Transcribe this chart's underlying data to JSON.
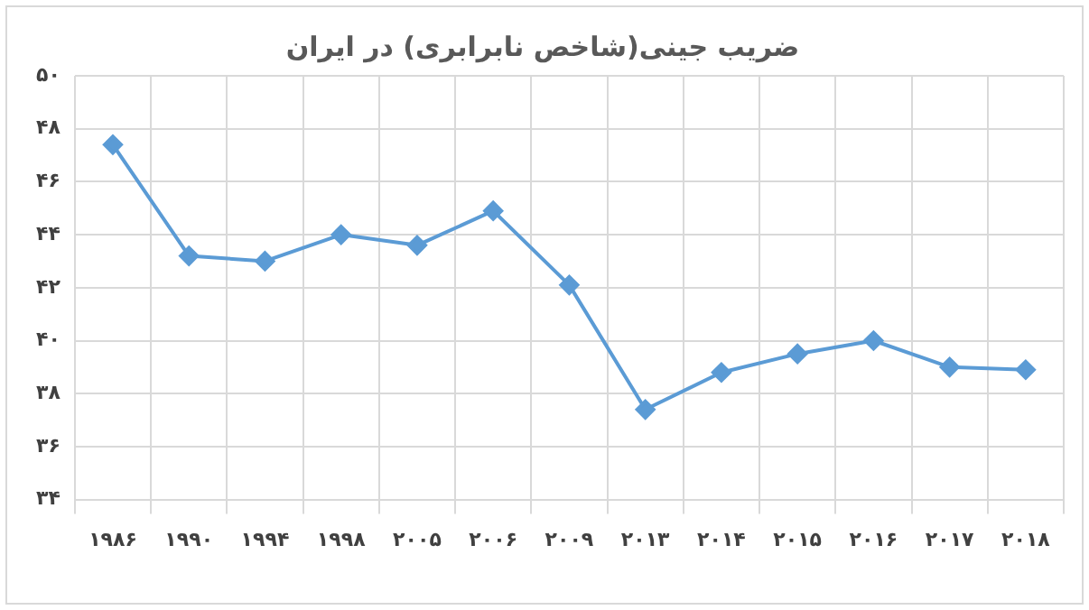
{
  "chart_data": {
    "type": "line",
    "title": "ضریب جینی(شاخص نابرابری) در ایران",
    "categories": [
      "۱۹۸۶",
      "۱۹۹۰",
      "۱۹۹۴",
      "۱۹۹۸",
      "۲۰۰۵",
      "۲۰۰۶",
      "۲۰۰۹",
      "۲۰۱۳",
      "۲۰۱۴",
      "۲۰۱۵",
      "۲۰۱۶",
      "۲۰۱۷",
      "۲۰۱۸"
    ],
    "series": [
      {
        "color": "#5b9bd5",
        "values": [
          47.4,
          43.2,
          43.0,
          44.0,
          43.6,
          44.9,
          42.1,
          37.4,
          38.8,
          39.5,
          40.0,
          39.0,
          38.9
        ]
      }
    ],
    "ylim": [
      34,
      50
    ],
    "yticks": [
      {
        "value": 34,
        "label": "۳۴"
      },
      {
        "value": 36,
        "label": "۳۶"
      },
      {
        "value": 38,
        "label": "۳۸"
      },
      {
        "value": 40,
        "label": "۴۰"
      },
      {
        "value": 42,
        "label": "۴۲"
      },
      {
        "value": 44,
        "label": "۴۴"
      },
      {
        "value": 46,
        "label": "۴۶"
      },
      {
        "value": 48,
        "label": "۴۸"
      },
      {
        "value": 50,
        "label": "۵۰"
      }
    ],
    "grid": true,
    "marker": "diamond",
    "line_style": "solid",
    "legend": false
  }
}
